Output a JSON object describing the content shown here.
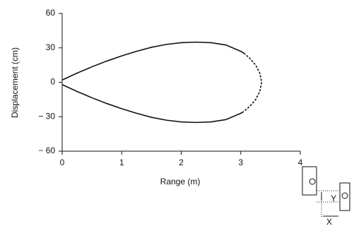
{
  "chart_data": {
    "type": "line",
    "xlabel": "Range (m)",
    "ylabel": "Displacement (cm)",
    "xlim": [
      0,
      4
    ],
    "xticks": [
      0,
      1,
      2,
      3,
      4
    ],
    "ylim": [
      -60,
      60
    ],
    "yticks": [
      {
        "value": -60,
        "label": "− 60"
      },
      {
        "value": -30,
        "label": "− 30"
      },
      0,
      30,
      60
    ],
    "series": [
      {
        "color": "#111111",
        "dash": false,
        "x": [
          0,
          0.25,
          0.5,
          0.75,
          1,
          1.25,
          1.5,
          1.75,
          2,
          2.25,
          2.5,
          2.75,
          3,
          3.05
        ],
        "values": [
          2,
          8,
          13.5,
          18.5,
          23,
          27,
          30.5,
          33,
          34.5,
          35,
          34.5,
          32.5,
          27,
          25.5
        ]
      },
      {
        "color": "#111111",
        "dash": true,
        "x": [
          3.05,
          3.15,
          3.25,
          3.32,
          3.35,
          3.32,
          3.25,
          3.15,
          3.05
        ],
        "values": [
          25.5,
          21,
          15,
          8,
          0,
          -8,
          -15,
          -21,
          -25.5
        ]
      },
      {
        "color": "#111111",
        "dash": false,
        "x": [
          0,
          0.25,
          0.5,
          0.75,
          1,
          1.25,
          1.5,
          1.75,
          2,
          2.25,
          2.5,
          2.75,
          3,
          3.05
        ],
        "values": [
          -2,
          -8,
          -13.5,
          -18.5,
          -23,
          -27,
          -30.5,
          -33,
          -34.5,
          -35,
          -34.5,
          -32.5,
          -27,
          -25.5
        ]
      }
    ],
    "annotations": [
      "Y",
      "X"
    ]
  }
}
